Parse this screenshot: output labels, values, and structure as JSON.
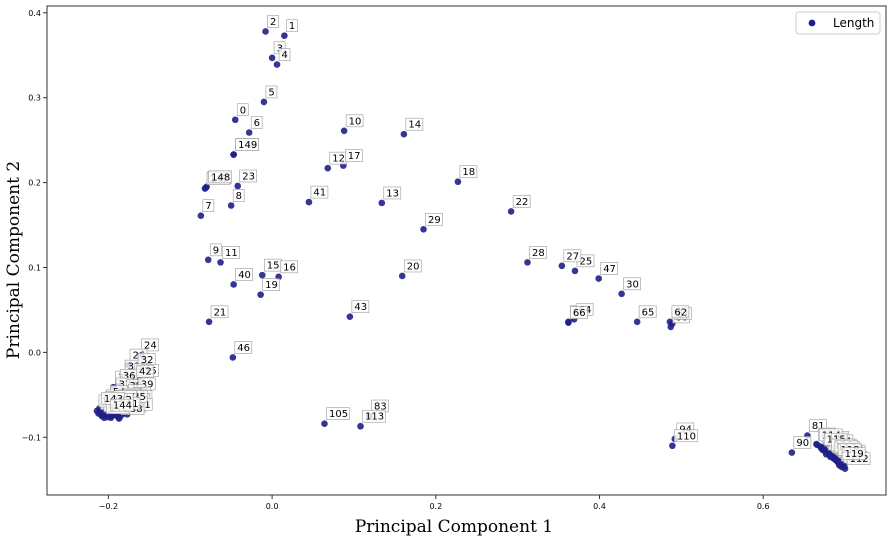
{
  "chart_data": {
    "type": "scatter",
    "xlabel": "Principal Component 1",
    "ylabel": "Principal Component 2",
    "xlim": [
      -0.275,
      0.75
    ],
    "ylim": [
      -0.168,
      0.408
    ],
    "xticks": [
      -0.2,
      0.0,
      0.2,
      0.4,
      0.6
    ],
    "xtick_labels": [
      "−0.2",
      "0.0",
      "0.2",
      "0.4",
      "0.6"
    ],
    "yticks": [
      -0.1,
      0.0,
      0.1,
      0.2,
      0.3,
      0.4
    ],
    "ytick_labels": [
      "−0.1",
      "0.0",
      "0.1",
      "0.2",
      "0.3",
      "0.4"
    ],
    "grid": false,
    "legend_position": "top-right",
    "colors": {
      "marker": "#1f1f8a",
      "axes": "#333333"
    },
    "series": [
      {
        "name": "Length",
        "points": [
          {
            "label": "0",
            "x": -0.045,
            "y": 0.274
          },
          {
            "label": "1",
            "x": 0.015,
            "y": 0.373
          },
          {
            "label": "2",
            "x": -0.008,
            "y": 0.378
          },
          {
            "label": "3",
            "x": 0.0,
            "y": 0.347
          },
          {
            "label": "4",
            "x": 0.006,
            "y": 0.339
          },
          {
            "label": "5",
            "x": -0.01,
            "y": 0.295
          },
          {
            "label": "6",
            "x": -0.028,
            "y": 0.259
          },
          {
            "label": "7",
            "x": -0.087,
            "y": 0.161
          },
          {
            "label": "8",
            "x": -0.05,
            "y": 0.173
          },
          {
            "label": "9",
            "x": -0.078,
            "y": 0.109
          },
          {
            "label": "10",
            "x": 0.088,
            "y": 0.261
          },
          {
            "label": "11",
            "x": -0.063,
            "y": 0.106
          },
          {
            "label": "12",
            "x": 0.068,
            "y": 0.217
          },
          {
            "label": "13",
            "x": 0.134,
            "y": 0.176
          },
          {
            "label": "14",
            "x": 0.161,
            "y": 0.257
          },
          {
            "label": "15",
            "x": -0.012,
            "y": 0.091
          },
          {
            "label": "16",
            "x": 0.008,
            "y": 0.089
          },
          {
            "label": "17",
            "x": 0.087,
            "y": 0.22
          },
          {
            "label": "18",
            "x": 0.227,
            "y": 0.201
          },
          {
            "label": "19",
            "x": -0.014,
            "y": 0.068
          },
          {
            "label": "20",
            "x": 0.159,
            "y": 0.09
          },
          {
            "label": "21",
            "x": -0.077,
            "y": 0.036
          },
          {
            "label": "22",
            "x": 0.292,
            "y": 0.166
          },
          {
            "label": "23",
            "x": -0.042,
            "y": 0.196
          },
          {
            "label": "24",
            "x": -0.162,
            "y": -0.003
          },
          {
            "label": "25",
            "x": 0.37,
            "y": 0.096
          },
          {
            "label": "26",
            "x": -0.176,
            "y": -0.015
          },
          {
            "label": "27",
            "x": 0.354,
            "y": 0.102
          },
          {
            "label": "28",
            "x": 0.312,
            "y": 0.106
          },
          {
            "label": "29",
            "x": 0.185,
            "y": 0.145
          },
          {
            "label": "30",
            "x": 0.427,
            "y": 0.069
          },
          {
            "label": "31",
            "x": -0.182,
            "y": -0.028
          },
          {
            "label": "32",
            "x": -0.166,
            "y": -0.02
          },
          {
            "label": "33",
            "x": -0.194,
            "y": -0.041
          },
          {
            "label": "34",
            "x": -0.171,
            "y": -0.032
          },
          {
            "label": "35",
            "x": -0.162,
            "y": -0.033
          },
          {
            "label": "36",
            "x": -0.188,
            "y": -0.039
          },
          {
            "label": "37",
            "x": -0.193,
            "y": -0.049
          },
          {
            "label": "38",
            "x": -0.18,
            "y": -0.051
          },
          {
            "label": "39",
            "x": -0.166,
            "y": -0.049
          },
          {
            "label": "40",
            "x": -0.047,
            "y": 0.08
          },
          {
            "label": "41",
            "x": 0.045,
            "y": 0.177
          },
          {
            "label": "42",
            "x": -0.168,
            "y": -0.034
          },
          {
            "label": "43",
            "x": 0.095,
            "y": 0.042
          },
          {
            "label": "44",
            "x": -0.2,
            "y": -0.074
          },
          {
            "label": "45",
            "x": -0.183,
            "y": -0.069
          },
          {
            "label": "46",
            "x": -0.048,
            "y": -0.006
          },
          {
            "label": "47",
            "x": 0.399,
            "y": 0.087
          },
          {
            "label": "48",
            "x": -0.19,
            "y": -0.07
          },
          {
            "label": "49",
            "x": -0.178,
            "y": -0.057
          },
          {
            "label": "50",
            "x": -0.185,
            "y": -0.064
          },
          {
            "label": "51",
            "x": -0.205,
            "y": -0.063
          },
          {
            "label": "52",
            "x": -0.195,
            "y": -0.062
          },
          {
            "label": "53",
            "x": -0.172,
            "y": -0.06
          },
          {
            "label": "54",
            "x": -0.2,
            "y": -0.058
          },
          {
            "label": "55",
            "x": -0.175,
            "y": -0.07
          },
          {
            "label": "56",
            "x": -0.188,
            "y": -0.073
          },
          {
            "label": "57",
            "x": -0.198,
            "y": -0.066
          },
          {
            "label": "58",
            "x": -0.21,
            "y": -0.068
          },
          {
            "label": "59",
            "x": -0.17,
            "y": -0.064
          },
          {
            "label": "60",
            "x": 0.487,
            "y": 0.03
          },
          {
            "label": "61",
            "x": 0.489,
            "y": 0.034
          },
          {
            "label": "62",
            "x": 0.486,
            "y": 0.036
          },
          {
            "label": "63",
            "x": 0.362,
            "y": 0.036
          },
          {
            "label": "64",
            "x": 0.369,
            "y": 0.039
          },
          {
            "label": "65",
            "x": 0.446,
            "y": 0.036
          },
          {
            "label": "66",
            "x": 0.362,
            "y": 0.035
          },
          {
            "label": "67",
            "x": -0.176,
            "y": -0.062
          },
          {
            "label": "68",
            "x": -0.192,
            "y": -0.067
          },
          {
            "label": "69",
            "x": -0.204,
            "y": -0.072
          },
          {
            "label": "70",
            "x": -0.181,
            "y": -0.072
          },
          {
            "label": "71",
            "x": -0.208,
            "y": -0.075
          },
          {
            "label": "72",
            "x": -0.197,
            "y": -0.071
          },
          {
            "label": "73",
            "x": -0.178,
            "y": -0.066
          },
          {
            "label": "74",
            "x": -0.186,
            "y": -0.068
          },
          {
            "label": "75",
            "x": -0.191,
            "y": -0.074
          },
          {
            "label": "76",
            "x": -0.196,
            "y": -0.075
          },
          {
            "label": "77",
            "x": -0.203,
            "y": -0.066
          },
          {
            "label": "78",
            "x": -0.173,
            "y": -0.068
          },
          {
            "label": "79",
            "x": -0.184,
            "y": -0.061
          },
          {
            "label": "80",
            "x": -0.188,
            "y": -0.076
          },
          {
            "label": "81",
            "x": 0.654,
            "y": -0.098
          },
          {
            "label": "82",
            "x": 0.665,
            "y": -0.108
          },
          {
            "label": "83",
            "x": 0.119,
            "y": -0.075
          },
          {
            "label": "84",
            "x": 0.671,
            "y": -0.113
          },
          {
            "label": "85",
            "x": 0.676,
            "y": -0.117
          },
          {
            "label": "86",
            "x": 0.68,
            "y": -0.119
          },
          {
            "label": "87",
            "x": 0.684,
            "y": -0.122
          },
          {
            "label": "88",
            "x": 0.688,
            "y": -0.126
          },
          {
            "label": "89",
            "x": 0.691,
            "y": -0.129
          },
          {
            "label": "90",
            "x": 0.635,
            "y": -0.118
          },
          {
            "label": "91",
            "x": 0.695,
            "y": -0.131
          },
          {
            "label": "92",
            "x": 0.697,
            "y": -0.132
          },
          {
            "label": "93",
            "x": 0.699,
            "y": -0.134
          },
          {
            "label": "94",
            "x": 0.492,
            "y": -0.102
          },
          {
            "label": "95",
            "x": 0.67,
            "y": -0.111
          },
          {
            "label": "96",
            "x": 0.673,
            "y": -0.115
          },
          {
            "label": "97",
            "x": 0.677,
            "y": -0.12
          },
          {
            "label": "98",
            "x": 0.682,
            "y": -0.123
          },
          {
            "label": "99",
            "x": 0.686,
            "y": -0.125
          },
          {
            "label": "100",
            "x": 0.689,
            "y": -0.127
          },
          {
            "label": "101",
            "x": 0.692,
            "y": -0.13
          },
          {
            "label": "102",
            "x": 0.694,
            "y": -0.128
          },
          {
            "label": "103",
            "x": 0.674,
            "y": -0.112
          },
          {
            "label": "104",
            "x": 0.679,
            "y": -0.116
          },
          {
            "label": "105",
            "x": 0.064,
            "y": -0.084
          },
          {
            "label": "106",
            "x": 0.683,
            "y": -0.121
          },
          {
            "label": "107",
            "x": 0.687,
            "y": -0.124
          },
          {
            "label": "108",
            "x": 0.69,
            "y": -0.128
          },
          {
            "label": "109",
            "x": 0.693,
            "y": -0.133
          },
          {
            "label": "110",
            "x": 0.489,
            "y": -0.11
          },
          {
            "label": "111",
            "x": 0.696,
            "y": -0.135
          },
          {
            "label": "112",
            "x": 0.7,
            "y": -0.137
          },
          {
            "label": "113",
            "x": 0.108,
            "y": -0.087
          },
          {
            "label": "114",
            "x": 0.666,
            "y": -0.109
          },
          {
            "label": "115",
            "x": 0.672,
            "y": -0.114
          },
          {
            "label": "116",
            "x": 0.681,
            "y": -0.121
          },
          {
            "label": "117",
            "x": 0.685,
            "y": -0.123
          },
          {
            "label": "118",
            "x": 0.689,
            "y": -0.126
          },
          {
            "label": "119",
            "x": 0.694,
            "y": -0.131
          },
          {
            "label": "120",
            "x": -0.21,
            "y": -0.071
          },
          {
            "label": "121",
            "x": -0.202,
            "y": -0.073
          },
          {
            "label": "122",
            "x": -0.194,
            "y": -0.074
          },
          {
            "label": "123",
            "x": -0.186,
            "y": -0.071
          },
          {
            "label": "124",
            "x": -0.18,
            "y": -0.067
          },
          {
            "label": "125",
            "x": -0.199,
            "y": -0.069
          },
          {
            "label": "126",
            "x": -0.206,
            "y": -0.065
          },
          {
            "label": "127",
            "x": -0.212,
            "y": -0.072
          },
          {
            "label": "128",
            "x": -0.201,
            "y": -0.076
          },
          {
            "label": "129",
            "x": -0.193,
            "y": -0.068
          },
          {
            "label": "130",
            "x": -0.185,
            "y": -0.075
          },
          {
            "label": "131",
            "x": -0.177,
            "y": -0.073
          },
          {
            "label": "132",
            "x": -0.19,
            "y": -0.063
          },
          {
            "label": "133",
            "x": -0.197,
            "y": -0.077
          },
          {
            "label": "134",
            "x": -0.204,
            "y": -0.07
          },
          {
            "label": "135",
            "x": -0.183,
            "y": -0.064
          },
          {
            "label": "136",
            "x": -0.208,
            "y": -0.074
          },
          {
            "label": "137",
            "x": -0.196,
            "y": -0.064
          },
          {
            "label": "138",
            "x": -0.187,
            "y": -0.078
          },
          {
            "label": "139",
            "x": -0.214,
            "y": -0.069
          },
          {
            "label": "140",
            "x": -0.205,
            "y": -0.077
          },
          {
            "label": "141",
            "x": -0.192,
            "y": -0.072
          },
          {
            "label": "142",
            "x": -0.2,
            "y": -0.067
          },
          {
            "label": "143",
            "x": -0.211,
            "y": -0.066
          },
          {
            "label": "144",
            "x": -0.2,
            "y": -0.074
          },
          {
            "label": "145",
            "x": -0.081,
            "y": 0.194
          },
          {
            "label": "146",
            "x": -0.047,
            "y": 0.233
          },
          {
            "label": "147",
            "x": -0.082,
            "y": 0.193
          },
          {
            "label": "148",
            "x": -0.08,
            "y": 0.195
          },
          {
            "label": "149",
            "x": -0.047,
            "y": 0.233
          }
        ]
      }
    ]
  }
}
